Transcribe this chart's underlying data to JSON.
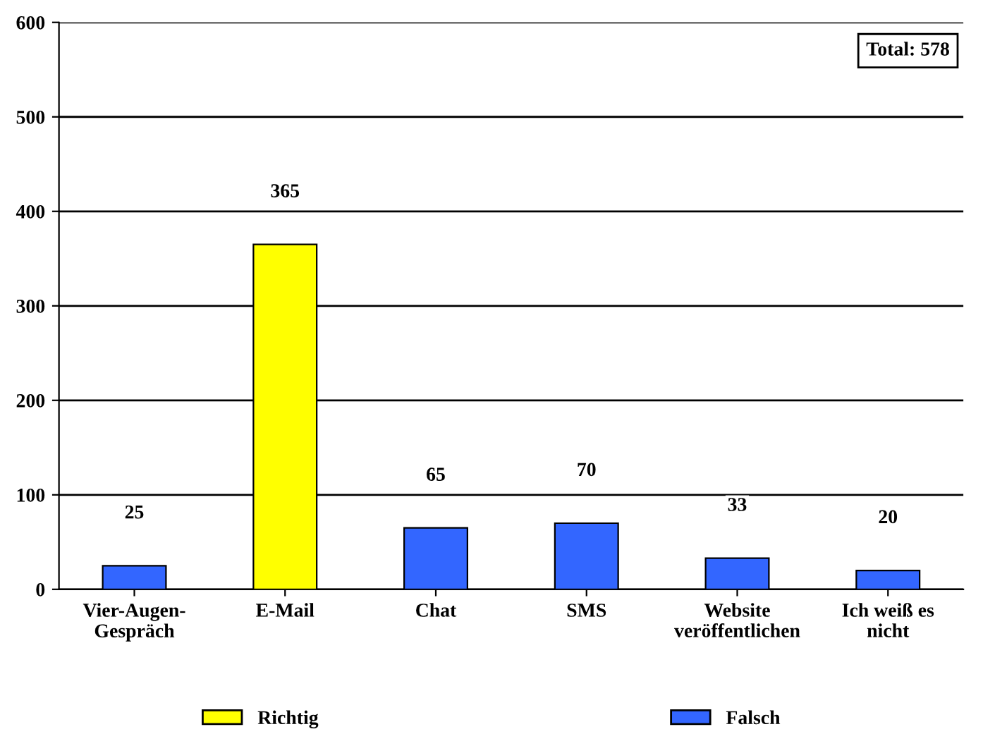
{
  "chart_data": {
    "type": "bar",
    "categories": [
      "Vier-Augen-\nGespräch",
      "E-Mail",
      "Chat",
      "SMS",
      "Website\nveröffentlichen",
      "Ich weiß es\nnicht"
    ],
    "series": [
      {
        "name": "Richtig",
        "color": "#ffff00",
        "values": [
          null,
          365,
          null,
          null,
          null,
          null
        ]
      },
      {
        "name": "Falsch",
        "color": "#3366ff",
        "values": [
          25,
          null,
          65,
          70,
          33,
          20
        ]
      }
    ],
    "ylim": [
      0,
      600
    ],
    "yticks": [
      0,
      100,
      200,
      300,
      400,
      500,
      600
    ],
    "grid": "y",
    "legend": "bottom",
    "data_labels": true,
    "annotations": [
      "Total: 578"
    ]
  }
}
